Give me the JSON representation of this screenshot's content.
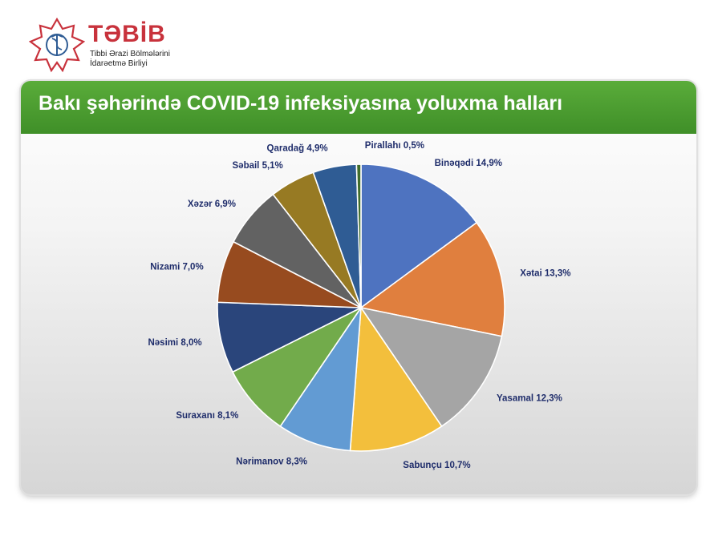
{
  "logo": {
    "title": "TƏBİB",
    "subtitle_line1": "Tibbi Ərazi Bölmələrini",
    "subtitle_line2": "İdarəetmə Birliyi",
    "icon": "star-caduceus-emblem"
  },
  "colors": {
    "brand_red": "#c8323c",
    "banner_green": "#4a9d2f",
    "label_navy": "#1f2d6b"
  },
  "chart_data": {
    "type": "pie",
    "title": "Bakı şəhərində COVID-19 infeksiyasına yoluxma halları",
    "unit": "%",
    "slices": [
      {
        "name": "Binəqədi",
        "value": 14.9,
        "label": "Binəqədi 14,9%",
        "color": "#4e73c0"
      },
      {
        "name": "Xətai",
        "value": 13.3,
        "label": "Xətai 13,3%",
        "color": "#e07f3e"
      },
      {
        "name": "Yasamal",
        "value": 12.3,
        "label": "Yasamal 12,3%",
        "color": "#a5a5a5"
      },
      {
        "name": "Sabunçu",
        "value": 10.7,
        "label": "Sabunçu 10,7%",
        "color": "#f3bf3c"
      },
      {
        "name": "Nərimanov",
        "value": 8.3,
        "label": "Nərimanov 8,3%",
        "color": "#629bd3"
      },
      {
        "name": "Suraxanı",
        "value": 8.1,
        "label": "Suraxanı 8,1%",
        "color": "#72ab4b"
      },
      {
        "name": "Nəsimi",
        "value": 8.0,
        "label": "Nəsimi 8,0%",
        "color": "#2a457b"
      },
      {
        "name": "Nizami",
        "value": 7.0,
        "label": "Nizami 7,0%",
        "color": "#974b1f"
      },
      {
        "name": "Xəzər",
        "value": 6.9,
        "label": "Xəzər 6,9%",
        "color": "#626262"
      },
      {
        "name": "Səbail",
        "value": 5.1,
        "label": "Səbail 5,1%",
        "color": "#977a23"
      },
      {
        "name": "Qaradağ",
        "value": 4.9,
        "label": "Qaradağ 4,9%",
        "color": "#2f5c94"
      },
      {
        "name": "Pirallahı",
        "value": 0.5,
        "label": "Pirallahı 0,5%",
        "color": "#416d2b"
      }
    ],
    "legend": "none",
    "data_labels": "outside"
  }
}
